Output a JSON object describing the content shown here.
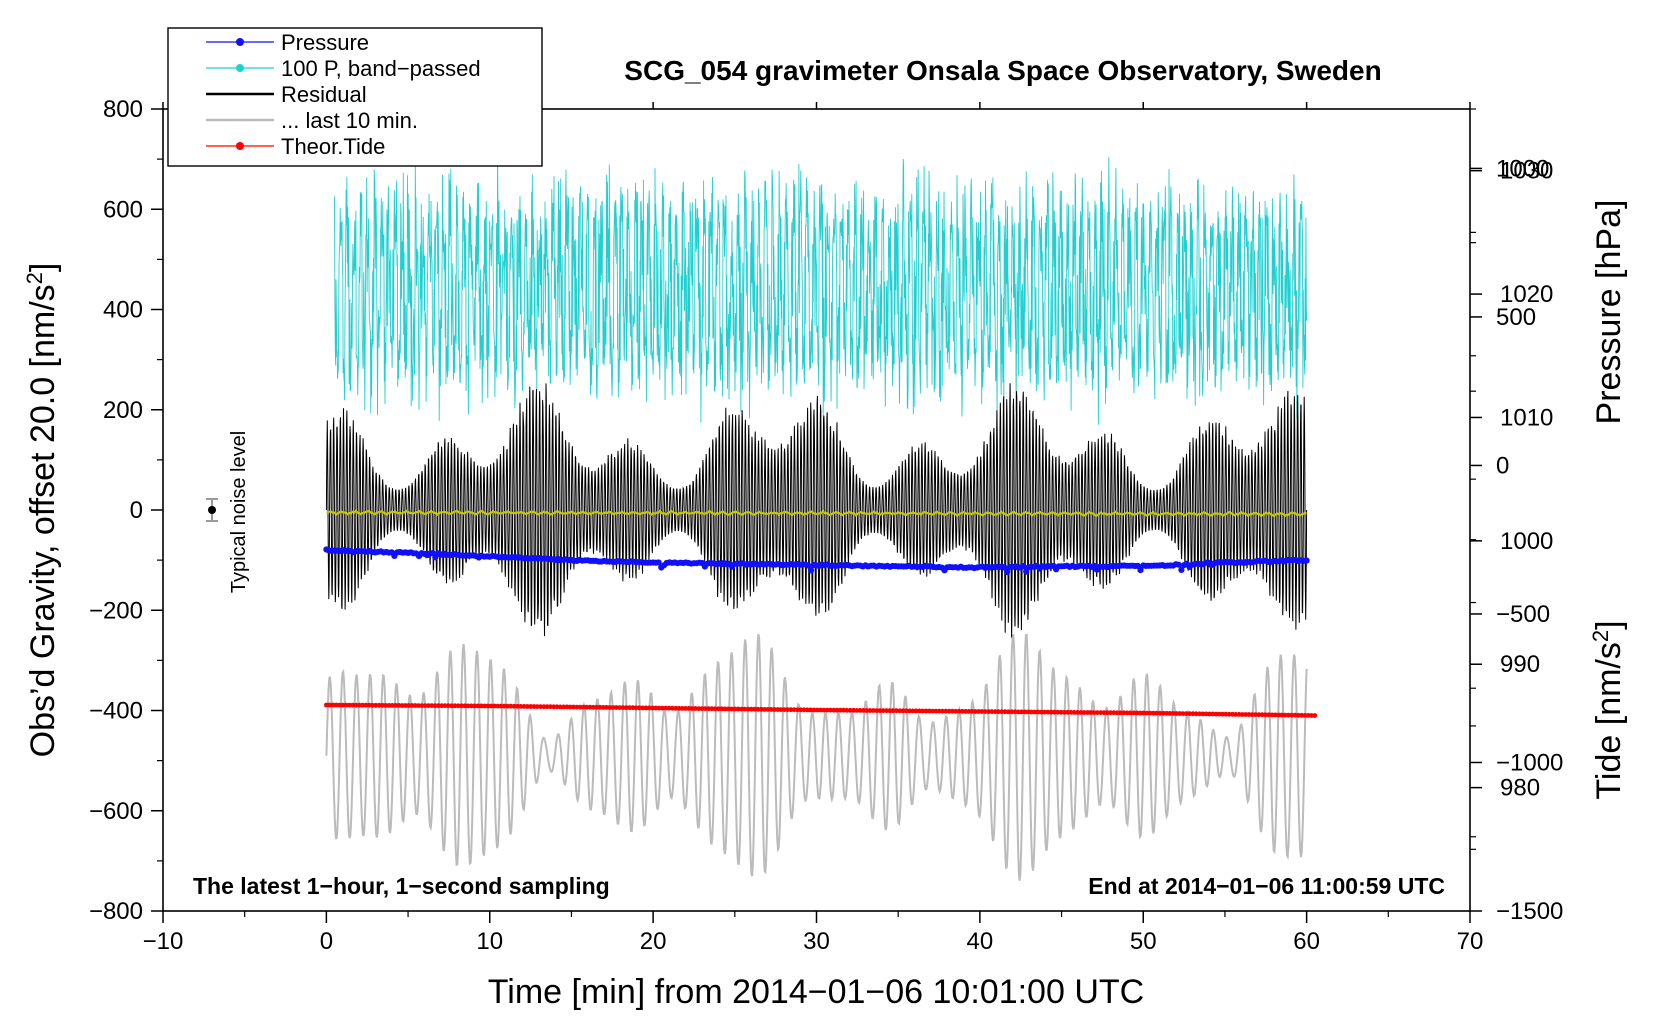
{
  "chart_data": {
    "type": "line",
    "title": "SCG_054 gravimeter Onsala Space Observatory, Sweden",
    "xlabel": "Time [min] from 2014−01−06 10:01:00 UTC",
    "ylabel_left": "Obs’d Gravity, offset 20.0 [nm/s",
    "ylabel_left_sup": "2",
    "ylabel_left_end": "]",
    "ylabel_right_top": "Pressure [hPa]",
    "ylabel_right_bottom": "Tide [nm/s",
    "ylabel_right_bottom_sup": "2",
    "ylabel_right_bottom_end": "]",
    "xlim": [
      -10,
      70
    ],
    "ylim_left": [
      -800,
      800
    ],
    "pressure_axis_range": [
      970,
      1035
    ],
    "tide_axis_range": [
      -1500,
      1200
    ],
    "x_ticks": [
      {
        "value": -10,
        "label": "−10"
      },
      {
        "value": 0,
        "label": "0"
      },
      {
        "value": 10,
        "label": "10"
      },
      {
        "value": 20,
        "label": "20"
      },
      {
        "value": 30,
        "label": "30"
      },
      {
        "value": 40,
        "label": "40"
      },
      {
        "value": 50,
        "label": "50"
      },
      {
        "value": 60,
        "label": "60"
      },
      {
        "value": 70,
        "label": "70"
      }
    ],
    "y_left_ticks": [
      {
        "value": 800,
        "label": "800"
      },
      {
        "value": 600,
        "label": "600"
      },
      {
        "value": 400,
        "label": "400"
      },
      {
        "value": 200,
        "label": "200"
      },
      {
        "value": 0,
        "label": "0"
      },
      {
        "value": -200,
        "label": "−200"
      },
      {
        "value": -400,
        "label": "−400"
      },
      {
        "value": -600,
        "label": "−600"
      },
      {
        "value": -800,
        "label": "−800"
      }
    ],
    "pressure_ticks": [
      {
        "value": 1030,
        "label": "1030"
      },
      {
        "value": 1020,
        "label": "1020"
      },
      {
        "value": 1010,
        "label": "1010"
      },
      {
        "value": 1000,
        "label": "1000"
      },
      {
        "value": 990,
        "label": "990"
      },
      {
        "value": 980,
        "label": "980"
      }
    ],
    "tide_ticks": [
      {
        "value": 1000,
        "label": "1000"
      },
      {
        "value": 500,
        "label": "500"
      },
      {
        "value": 0,
        "label": "0"
      },
      {
        "value": -500,
        "label": "−500"
      },
      {
        "value": -1000,
        "label": "−1000"
      },
      {
        "value": -1500,
        "label": "−1500"
      }
    ],
    "legend": [
      {
        "label": "Pressure",
        "color": "#1010ff",
        "marker": true
      },
      {
        "label": "100 P, band−passed",
        "color": "#20d0d0",
        "marker": true
      },
      {
        "label": "Residual",
        "color": "#000000",
        "marker": false
      },
      {
        "label": "... last 10 min.",
        "color": "#bbbbbb",
        "marker": false
      },
      {
        "label": "Theor.Tide",
        "color": "#ff0000",
        "marker": true
      }
    ],
    "series": [
      {
        "name": "Pressure",
        "axis": "pressure",
        "color": "#1010ff",
        "x": [
          0,
          5,
          10,
          15,
          20,
          25,
          30,
          35,
          40,
          45,
          50,
          55,
          60
        ],
        "values": [
          999.3,
          999.1,
          998.8,
          998.5,
          998.3,
          998.2,
          998.1,
          998.0,
          997.9,
          998.0,
          998.0,
          998.3,
          998.5
        ]
      },
      {
        "name": "100 P, band−passed",
        "axis": "left",
        "color": "#20d0d0",
        "center": 440,
        "amplitude_range": [
          80,
          280
        ],
        "x_range": [
          0.5,
          60
        ]
      },
      {
        "name": "Residual",
        "axis": "left",
        "color": "#000000",
        "center": 0,
        "amplitude_range": [
          40,
          270
        ],
        "x_range": [
          0,
          60
        ]
      },
      {
        "name": "... last 10 min.",
        "axis": "left",
        "color": "#bbbbbb",
        "center": -490,
        "amplitude_range": [
          30,
          240
        ],
        "x_range": [
          0,
          60
        ]
      },
      {
        "name": "Theor.Tide",
        "axis": "left",
        "color": "#ff0000",
        "x": [
          0,
          10,
          20,
          30,
          40,
          50,
          60.5
        ],
        "values": [
          -389,
          -391,
          -395,
          -399,
          -402,
          -405,
          -410
        ]
      },
      {
        "name": "Residual smoothed",
        "axis": "left",
        "color": "#c8c800",
        "x": [
          0,
          60
        ],
        "values": [
          -5,
          -8
        ]
      }
    ],
    "noise_marker": {
      "x": -7,
      "y": 0,
      "error": 22,
      "label": "Typical noise level"
    },
    "annotation_left": "The latest 1−hour, 1−second sampling",
    "annotation_right": "End at 2014−01−06 11:00:59 UTC"
  }
}
